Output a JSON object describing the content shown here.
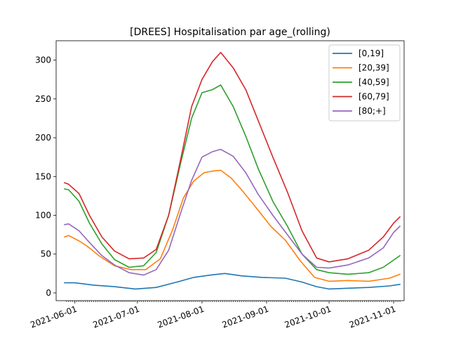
{
  "chart_data": {
    "type": "line",
    "title": "[DREES] Hospitalisation par age_(rolling)",
    "xlabel": "",
    "ylabel": "",
    "xlim": [
      "2021-05-23",
      "2021-11-06"
    ],
    "ylim": [
      -10,
      325
    ],
    "x_ticks": [
      "2021-06-01",
      "2021-07-01",
      "2021-08-01",
      "2021-09-01",
      "2021-10-01",
      "2021-11-01"
    ],
    "y_ticks": [
      0,
      50,
      100,
      150,
      200,
      250,
      300
    ],
    "grid": false,
    "legend_position": "top-right",
    "series": [
      {
        "name": "[0,19]",
        "color": "#1f77b4",
        "points": [
          [
            "2021-05-27",
            13
          ],
          [
            "2021-06-01",
            13
          ],
          [
            "2021-06-10",
            10
          ],
          [
            "2021-06-20",
            8
          ],
          [
            "2021-06-30",
            5
          ],
          [
            "2021-07-10",
            7
          ],
          [
            "2021-07-20",
            14
          ],
          [
            "2021-07-28",
            20
          ],
          [
            "2021-08-05",
            23
          ],
          [
            "2021-08-12",
            25
          ],
          [
            "2021-08-20",
            22
          ],
          [
            "2021-08-30",
            20
          ],
          [
            "2021-09-10",
            19
          ],
          [
            "2021-09-18",
            14
          ],
          [
            "2021-09-25",
            8
          ],
          [
            "2021-10-01",
            5
          ],
          [
            "2021-10-10",
            6
          ],
          [
            "2021-10-20",
            7
          ],
          [
            "2021-10-30",
            9
          ],
          [
            "2021-11-04",
            11
          ]
        ]
      },
      {
        "name": "[20,39]",
        "color": "#ff7f0e",
        "points": [
          [
            "2021-05-27",
            72
          ],
          [
            "2021-05-29",
            74
          ],
          [
            "2021-06-03",
            67
          ],
          [
            "2021-06-07",
            60
          ],
          [
            "2021-06-13",
            47
          ],
          [
            "2021-06-20",
            35
          ],
          [
            "2021-06-28",
            30
          ],
          [
            "2021-07-05",
            30
          ],
          [
            "2021-07-12",
            44
          ],
          [
            "2021-07-18",
            82
          ],
          [
            "2021-07-23",
            122
          ],
          [
            "2021-07-28",
            144
          ],
          [
            "2021-08-02",
            155
          ],
          [
            "2021-08-06",
            157
          ],
          [
            "2021-08-10",
            158
          ],
          [
            "2021-08-15",
            148
          ],
          [
            "2021-08-20",
            133
          ],
          [
            "2021-08-26",
            113
          ],
          [
            "2021-09-03",
            86
          ],
          [
            "2021-09-10",
            68
          ],
          [
            "2021-09-17",
            42
          ],
          [
            "2021-09-24",
            20
          ],
          [
            "2021-10-01",
            15
          ],
          [
            "2021-10-10",
            16
          ],
          [
            "2021-10-20",
            15
          ],
          [
            "2021-10-30",
            19
          ],
          [
            "2021-11-04",
            24
          ]
        ]
      },
      {
        "name": "[40,59]",
        "color": "#2ca02c",
        "points": [
          [
            "2021-05-27",
            134
          ],
          [
            "2021-05-29",
            133
          ],
          [
            "2021-06-03",
            118
          ],
          [
            "2021-06-08",
            90
          ],
          [
            "2021-06-14",
            63
          ],
          [
            "2021-06-20",
            43
          ],
          [
            "2021-06-27",
            33
          ],
          [
            "2021-07-04",
            35
          ],
          [
            "2021-07-10",
            52
          ],
          [
            "2021-07-16",
            100
          ],
          [
            "2021-07-22",
            170
          ],
          [
            "2021-07-27",
            225
          ],
          [
            "2021-08-01",
            258
          ],
          [
            "2021-08-06",
            262
          ],
          [
            "2021-08-10",
            268
          ],
          [
            "2021-08-16",
            240
          ],
          [
            "2021-08-22",
            202
          ],
          [
            "2021-08-28",
            160
          ],
          [
            "2021-09-04",
            118
          ],
          [
            "2021-09-11",
            86
          ],
          [
            "2021-09-18",
            50
          ],
          [
            "2021-09-25",
            30
          ],
          [
            "2021-10-01",
            26
          ],
          [
            "2021-10-10",
            24
          ],
          [
            "2021-10-20",
            26
          ],
          [
            "2021-10-27",
            33
          ],
          [
            "2021-11-04",
            48
          ]
        ]
      },
      {
        "name": "[60,79]",
        "color": "#d62728",
        "points": [
          [
            "2021-05-27",
            142
          ],
          [
            "2021-05-29",
            140
          ],
          [
            "2021-06-03",
            128
          ],
          [
            "2021-06-08",
            100
          ],
          [
            "2021-06-14",
            72
          ],
          [
            "2021-06-20",
            54
          ],
          [
            "2021-06-27",
            44
          ],
          [
            "2021-07-04",
            45
          ],
          [
            "2021-07-10",
            56
          ],
          [
            "2021-07-16",
            100
          ],
          [
            "2021-07-22",
            175
          ],
          [
            "2021-07-27",
            240
          ],
          [
            "2021-08-01",
            275
          ],
          [
            "2021-08-06",
            298
          ],
          [
            "2021-08-10",
            310
          ],
          [
            "2021-08-16",
            290
          ],
          [
            "2021-08-22",
            262
          ],
          [
            "2021-08-28",
            222
          ],
          [
            "2021-09-04",
            175
          ],
          [
            "2021-09-11",
            130
          ],
          [
            "2021-09-18",
            80
          ],
          [
            "2021-09-25",
            45
          ],
          [
            "2021-10-01",
            40
          ],
          [
            "2021-10-10",
            44
          ],
          [
            "2021-10-20",
            55
          ],
          [
            "2021-10-27",
            72
          ],
          [
            "2021-11-01",
            90
          ],
          [
            "2021-11-04",
            98
          ]
        ]
      },
      {
        "name": "[80;+]",
        "color": "#9467bd",
        "points": [
          [
            "2021-05-27",
            88
          ],
          [
            "2021-05-29",
            89
          ],
          [
            "2021-06-03",
            80
          ],
          [
            "2021-06-08",
            65
          ],
          [
            "2021-06-14",
            48
          ],
          [
            "2021-06-20",
            36
          ],
          [
            "2021-06-27",
            26
          ],
          [
            "2021-07-04",
            23
          ],
          [
            "2021-07-10",
            30
          ],
          [
            "2021-07-16",
            55
          ],
          [
            "2021-07-22",
            105
          ],
          [
            "2021-07-27",
            145
          ],
          [
            "2021-08-01",
            175
          ],
          [
            "2021-08-06",
            182
          ],
          [
            "2021-08-10",
            185
          ],
          [
            "2021-08-16",
            176
          ],
          [
            "2021-08-22",
            155
          ],
          [
            "2021-08-28",
            127
          ],
          [
            "2021-09-04",
            100
          ],
          [
            "2021-09-11",
            75
          ],
          [
            "2021-09-18",
            50
          ],
          [
            "2021-09-25",
            33
          ],
          [
            "2021-10-01",
            32
          ],
          [
            "2021-10-10",
            36
          ],
          [
            "2021-10-20",
            45
          ],
          [
            "2021-10-27",
            58
          ],
          [
            "2021-11-01",
            78
          ],
          [
            "2021-11-04",
            86
          ]
        ]
      }
    ]
  }
}
